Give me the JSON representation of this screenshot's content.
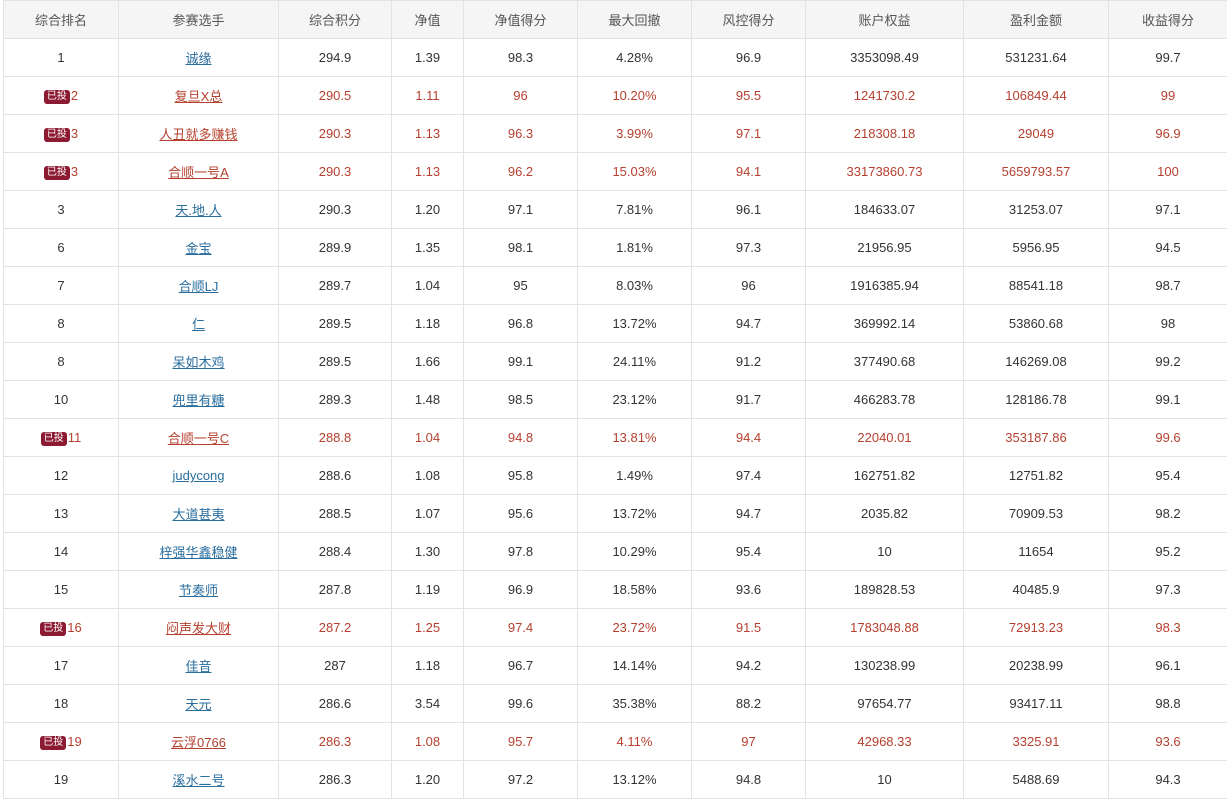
{
  "table": {
    "headers": [
      "综合排名",
      "参赛选手",
      "综合积分",
      "净值",
      "净值得分",
      "最大回撤",
      "风控得分",
      "账户权益",
      "盈利金额",
      "收益得分"
    ],
    "rows": [
      {
        "badge": "",
        "rank": "1",
        "player": "诚缘",
        "score": "294.9",
        "nav": "1.39",
        "nav_score": "98.3",
        "drawdown": "4.28%",
        "risk_score": "96.9",
        "equity": "3353098.49",
        "profit": "531231.64",
        "return_score": "99.7"
      },
      {
        "badge": "已投",
        "rank": "2",
        "player": "复旦X总",
        "score": "290.5",
        "nav": "1.11",
        "nav_score": "96",
        "drawdown": "10.20%",
        "risk_score": "95.5",
        "equity": "1241730.2",
        "profit": "106849.44",
        "return_score": "99"
      },
      {
        "badge": "已投",
        "rank": "3",
        "player": "人丑就多赚钱",
        "score": "290.3",
        "nav": "1.13",
        "nav_score": "96.3",
        "drawdown": "3.99%",
        "risk_score": "97.1",
        "equity": "218308.18",
        "profit": "29049",
        "return_score": "96.9"
      },
      {
        "badge": "已投",
        "rank": "3",
        "player": "合顺一号A",
        "score": "290.3",
        "nav": "1.13",
        "nav_score": "96.2",
        "drawdown": "15.03%",
        "risk_score": "94.1",
        "equity": "33173860.73",
        "profit": "5659793.57",
        "return_score": "100"
      },
      {
        "badge": "",
        "rank": "3",
        "player": "天.地.人",
        "score": "290.3",
        "nav": "1.20",
        "nav_score": "97.1",
        "drawdown": "7.81%",
        "risk_score": "96.1",
        "equity": "184633.07",
        "profit": "31253.07",
        "return_score": "97.1"
      },
      {
        "badge": "",
        "rank": "6",
        "player": "金宝",
        "score": "289.9",
        "nav": "1.35",
        "nav_score": "98.1",
        "drawdown": "1.81%",
        "risk_score": "97.3",
        "equity": "21956.95",
        "profit": "5956.95",
        "return_score": "94.5"
      },
      {
        "badge": "",
        "rank": "7",
        "player": "合顺LJ",
        "score": "289.7",
        "nav": "1.04",
        "nav_score": "95",
        "drawdown": "8.03%",
        "risk_score": "96",
        "equity": "1916385.94",
        "profit": "88541.18",
        "return_score": "98.7"
      },
      {
        "badge": "",
        "rank": "8",
        "player": "仁",
        "score": "289.5",
        "nav": "1.18",
        "nav_score": "96.8",
        "drawdown": "13.72%",
        "risk_score": "94.7",
        "equity": "369992.14",
        "profit": "53860.68",
        "return_score": "98"
      },
      {
        "badge": "",
        "rank": "8",
        "player": "呆如木鸡",
        "score": "289.5",
        "nav": "1.66",
        "nav_score": "99.1",
        "drawdown": "24.11%",
        "risk_score": "91.2",
        "equity": "377490.68",
        "profit": "146269.08",
        "return_score": "99.2"
      },
      {
        "badge": "",
        "rank": "10",
        "player": "兜里有糖",
        "score": "289.3",
        "nav": "1.48",
        "nav_score": "98.5",
        "drawdown": "23.12%",
        "risk_score": "91.7",
        "equity": "466283.78",
        "profit": "128186.78",
        "return_score": "99.1"
      },
      {
        "badge": "已投",
        "rank": "11",
        "player": "合顺一号C",
        "score": "288.8",
        "nav": "1.04",
        "nav_score": "94.8",
        "drawdown": "13.81%",
        "risk_score": "94.4",
        "equity": "22040.01",
        "profit": "353187.86",
        "return_score": "99.6"
      },
      {
        "badge": "",
        "rank": "12",
        "player": "judycong",
        "score": "288.6",
        "nav": "1.08",
        "nav_score": "95.8",
        "drawdown": "1.49%",
        "risk_score": "97.4",
        "equity": "162751.82",
        "profit": "12751.82",
        "return_score": "95.4"
      },
      {
        "badge": "",
        "rank": "13",
        "player": "大道甚夷",
        "score": "288.5",
        "nav": "1.07",
        "nav_score": "95.6",
        "drawdown": "13.72%",
        "risk_score": "94.7",
        "equity": "2035.82",
        "profit": "70909.53",
        "return_score": "98.2"
      },
      {
        "badge": "",
        "rank": "14",
        "player": "梓强华鑫稳健",
        "score": "288.4",
        "nav": "1.30",
        "nav_score": "97.8",
        "drawdown": "10.29%",
        "risk_score": "95.4",
        "equity": "10",
        "profit": "11654",
        "return_score": "95.2"
      },
      {
        "badge": "",
        "rank": "15",
        "player": "节奏师",
        "score": "287.8",
        "nav": "1.19",
        "nav_score": "96.9",
        "drawdown": "18.58%",
        "risk_score": "93.6",
        "equity": "189828.53",
        "profit": "40485.9",
        "return_score": "97.3"
      },
      {
        "badge": "已投",
        "rank": "16",
        "player": "闷声发大财",
        "score": "287.2",
        "nav": "1.25",
        "nav_score": "97.4",
        "drawdown": "23.72%",
        "risk_score": "91.5",
        "equity": "1783048.88",
        "profit": "72913.23",
        "return_score": "98.3"
      },
      {
        "badge": "",
        "rank": "17",
        "player": "佳音",
        "score": "287",
        "nav": "1.18",
        "nav_score": "96.7",
        "drawdown": "14.14%",
        "risk_score": "94.2",
        "equity": "130238.99",
        "profit": "20238.99",
        "return_score": "96.1"
      },
      {
        "badge": "",
        "rank": "18",
        "player": "天元",
        "score": "286.6",
        "nav": "3.54",
        "nav_score": "99.6",
        "drawdown": "35.38%",
        "risk_score": "88.2",
        "equity": "97654.77",
        "profit": "93417.11",
        "return_score": "98.8"
      },
      {
        "badge": "已投",
        "rank": "19",
        "player": "云浮0766",
        "score": "286.3",
        "nav": "1.08",
        "nav_score": "95.7",
        "drawdown": "4.11%",
        "risk_score": "97",
        "equity": "42968.33",
        "profit": "3325.91",
        "return_score": "93.6"
      },
      {
        "badge": "",
        "rank": "19",
        "player": "溪水二号",
        "score": "286.3",
        "nav": "1.20",
        "nav_score": "97.2",
        "drawdown": "13.12%",
        "risk_score": "94.8",
        "equity": "10",
        "profit": "5488.69",
        "return_score": "94.3"
      }
    ]
  },
  "colors": {
    "invested_text": "#b5402f",
    "badge_bg": "#8b1a32",
    "link": "#2a6e9e",
    "header_bg": "#f5f5f5"
  }
}
